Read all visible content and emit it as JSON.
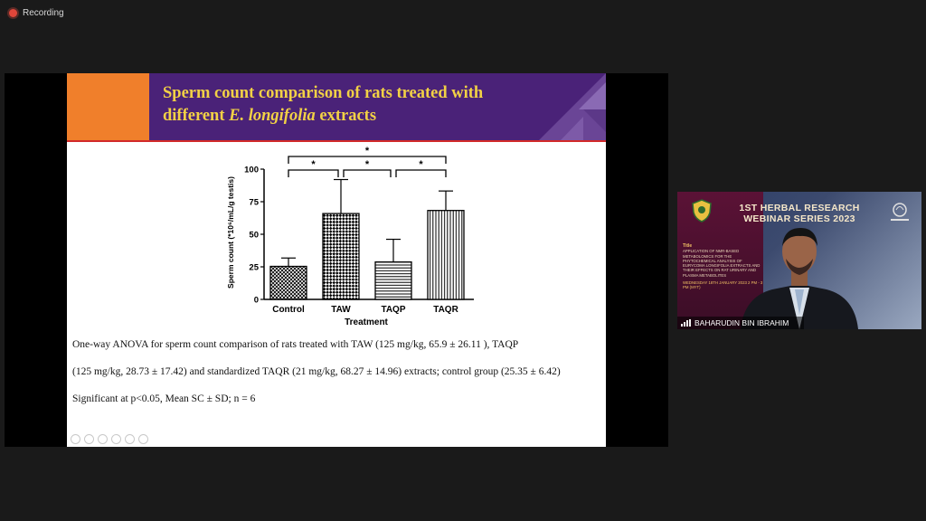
{
  "recording": {
    "label": "Recording"
  },
  "slide": {
    "title_line1": "Sperm count comparison of rats treated with",
    "title_line2_prefix": "different ",
    "title_line2_italic": "E. longifolia",
    "title_line2_suffix": " extracts",
    "caption1": "One-way ANOVA for sperm count comparison of rats treated with TAW (125 mg/kg, 65.9 ± 26.11 ), TAQP",
    "caption2": "(125 mg/kg, 28.73 ± 17.42) and standardized TAQR (21 mg/kg, 68.27 ± 14.96) extracts; control group (25.35 ± 6.42)",
    "caption3": "Significant at p<0.05,  Mean SC ± SD; n = 6"
  },
  "chart_data": {
    "type": "bar",
    "categories": [
      "Control",
      "TAW",
      "TAQP",
      "TAQR"
    ],
    "values": [
      25.35,
      65.9,
      28.73,
      68.27
    ],
    "errors": [
      6.42,
      26.11,
      17.42,
      14.96
    ],
    "patterns": [
      "crosshatch",
      "checker",
      "horizontal",
      "vertical"
    ],
    "xlabel": "Treatment",
    "ylabel": "Sperm count (*10⁶/mL/g testis)",
    "ylim": [
      0,
      100
    ],
    "yticks": [
      0,
      25,
      50,
      75,
      100
    ],
    "significance": [
      {
        "from": 0,
        "to": 1,
        "label": "*",
        "level": 1
      },
      {
        "from": 1,
        "to": 2,
        "label": "*",
        "level": 1
      },
      {
        "from": 2,
        "to": 3,
        "label": "*",
        "level": 1
      },
      {
        "from": 0,
        "to": 3,
        "label": "*",
        "level": 2
      }
    ]
  },
  "video": {
    "banner_title": "1ST HERBAL RESEARCH WEBINAR SERIES 2023",
    "talk_label": "Title",
    "talk_title": "APPLICATION OF NMR-BASED METABOLOMICS FOR THE PHYTOCHEMICAL ANALYSIS OF EURYCOMA LONGIFOLIA EXTRACTS AND THEIR EFFECTS ON RAT URINARY AND PLASMA METABOLITES",
    "date_line": "WEDNESDAY 18TH JANUARY 2023 2 PM - 3 PM (MYT)",
    "participant_name": "BAHARUDIN BIN IBRAHIM"
  }
}
